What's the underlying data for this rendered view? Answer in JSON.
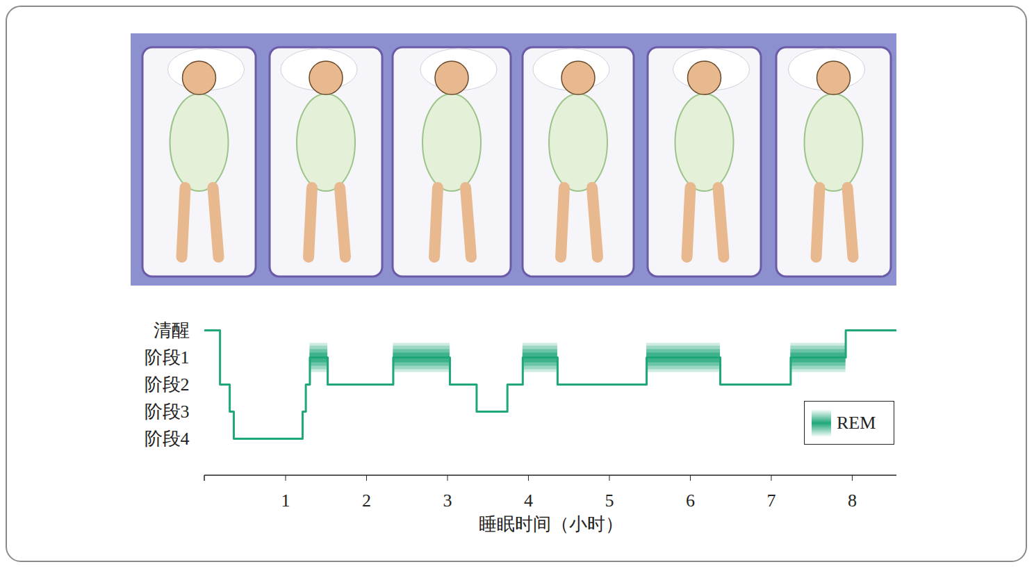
{
  "chart_data": {
    "type": "step",
    "xlabel": "睡眠时间（小时）",
    "categories": [
      "清醒",
      "阶段1",
      "阶段2",
      "阶段3",
      "阶段4"
    ],
    "xlim": [
      0,
      8.55
    ],
    "xticks": [
      1,
      2,
      3,
      4,
      5,
      6,
      7,
      8
    ],
    "color": "#1fa77a",
    "legend": "lower right",
    "rem_label": "REM",
    "segments": [
      {
        "start": 0,
        "end": 0.19,
        "stage": "清醒"
      },
      {
        "start": 0.19,
        "end": 0.31,
        "stage": "阶段2"
      },
      {
        "start": 0.31,
        "end": 0.36,
        "stage": "阶段3"
      },
      {
        "start": 0.36,
        "end": 1.21,
        "stage": "阶段4"
      },
      {
        "start": 1.21,
        "end": 1.25,
        "stage": "阶段3"
      },
      {
        "start": 1.25,
        "end": 1.3,
        "stage": "阶段2"
      },
      {
        "start": 1.3,
        "end": 1.52,
        "stage": "阶段1",
        "rem": true
      },
      {
        "start": 1.52,
        "end": 2.33,
        "stage": "阶段2"
      },
      {
        "start": 2.33,
        "end": 3.03,
        "stage": "阶段1",
        "rem": true
      },
      {
        "start": 3.03,
        "end": 3.36,
        "stage": "阶段2"
      },
      {
        "start": 3.36,
        "end": 3.74,
        "stage": "阶段3"
      },
      {
        "start": 3.74,
        "end": 3.93,
        "stage": "阶段2"
      },
      {
        "start": 3.93,
        "end": 4.36,
        "stage": "阶段1",
        "rem": true
      },
      {
        "start": 4.36,
        "end": 5.46,
        "stage": "阶段2"
      },
      {
        "start": 5.46,
        "end": 6.37,
        "stage": "阶段1",
        "rem": true
      },
      {
        "start": 6.37,
        "end": 7.24,
        "stage": "阶段2"
      },
      {
        "start": 7.24,
        "end": 7.92,
        "stage": "阶段1",
        "rem": true
      },
      {
        "start": 7.92,
        "end": 8.55,
        "stage": "清醒"
      }
    ]
  }
}
